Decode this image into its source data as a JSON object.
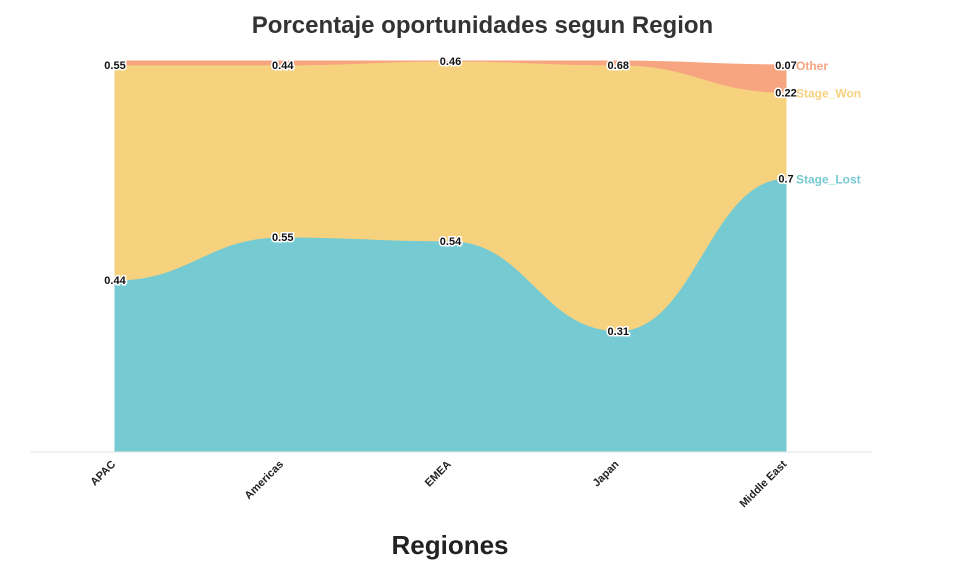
{
  "chart_data": {
    "type": "area",
    "title": "Porcentaje oportunidades segun Region",
    "xlabel": "Regiones",
    "ylabel": "",
    "stacked": true,
    "normalized": true,
    "ylim": [
      0,
      1
    ],
    "grid": false,
    "categories": [
      "APAC",
      "Americas",
      "EMEA",
      "Japan",
      "Middle East"
    ],
    "series": [
      {
        "name": "Stage_Lost",
        "color": "#76cad1",
        "values": [
          0.44,
          0.55,
          0.54,
          0.31,
          0.7
        ],
        "labels": [
          "0.44",
          "0.55",
          "0.54",
          "0.31",
          "0.7"
        ]
      },
      {
        "name": "Stage_Won",
        "color": "#f6d27f",
        "values": [
          0.55,
          0.44,
          0.46,
          0.68,
          0.22
        ],
        "labels": [
          "0.55",
          "0.44",
          "0.46",
          "0.68",
          "0.22"
        ]
      },
      {
        "name": "Other",
        "color": "#f7a581",
        "values": [
          0.01,
          0.01,
          0.0,
          0.01,
          0.07
        ],
        "labels": [
          "",
          "",
          "",
          "",
          "0.07"
        ]
      }
    ]
  }
}
